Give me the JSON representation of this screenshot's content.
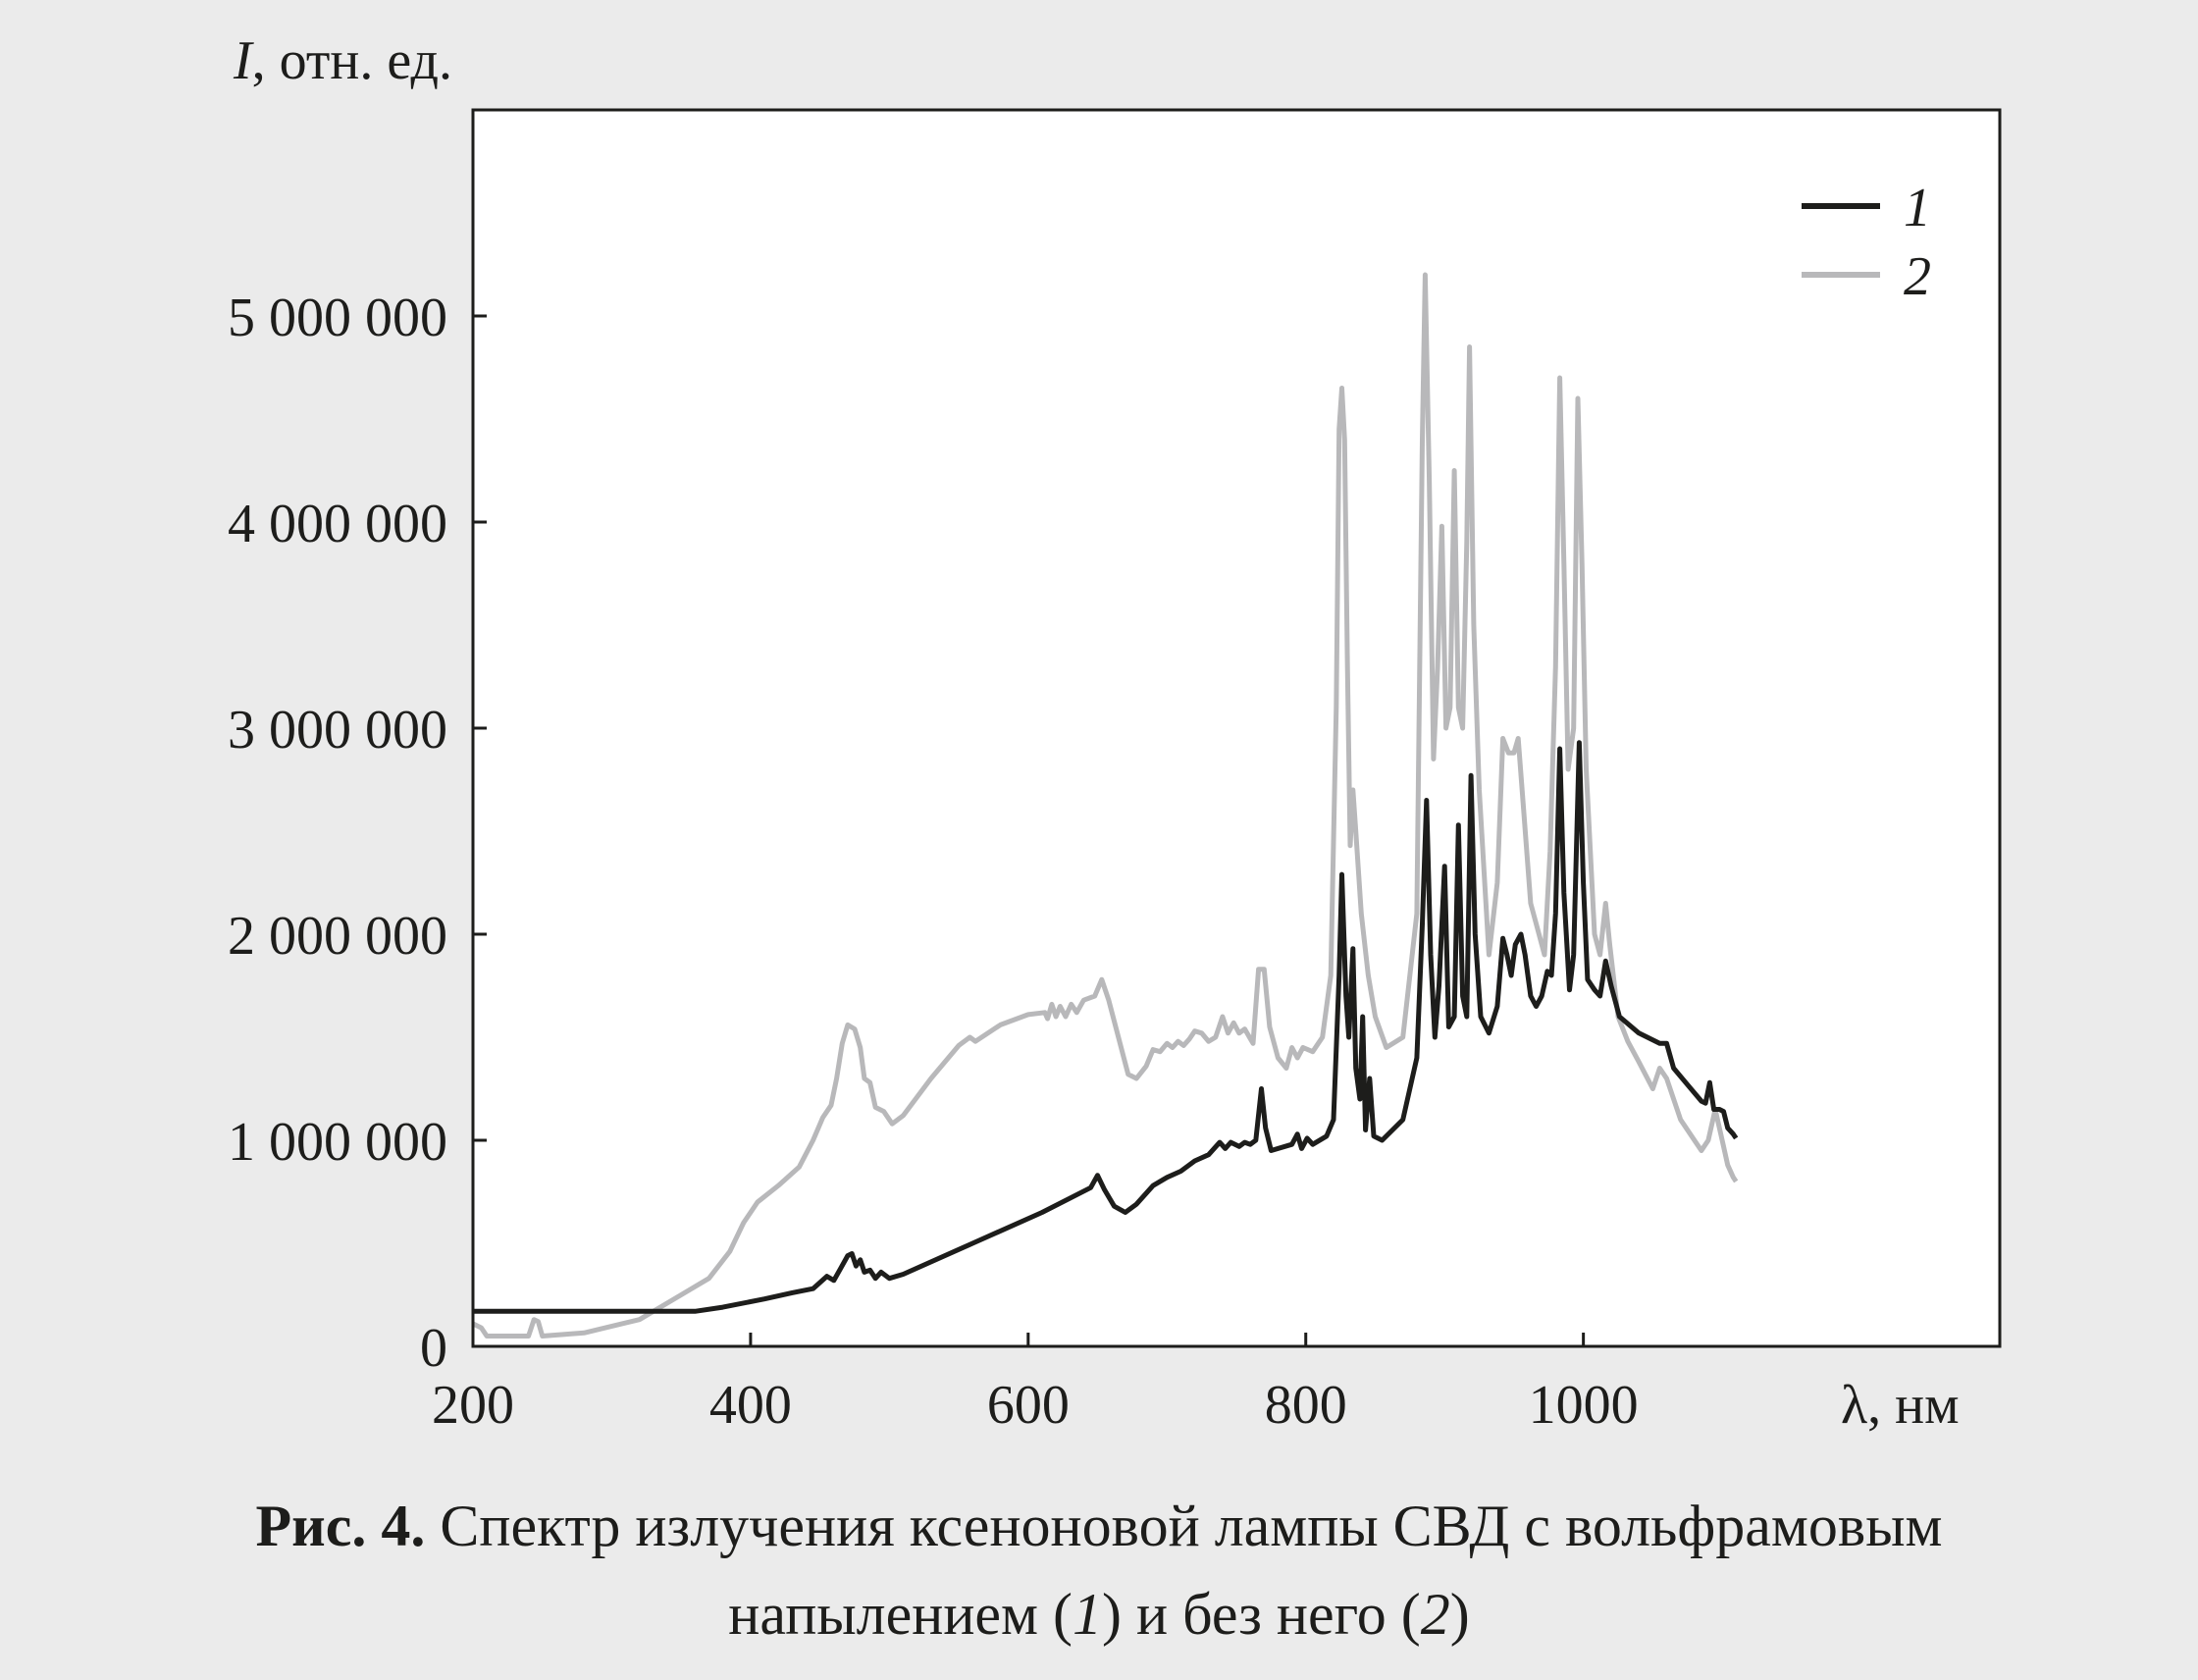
{
  "chart_data": {
    "type": "line",
    "ylabel_symbol": "I",
    "ylabel_unit": ", отн. ед.",
    "xlabel": "λ, нм",
    "xlim": [
      200,
      1300
    ],
    "ylim": [
      0,
      6000000
    ],
    "x_ticks": [
      200,
      400,
      600,
      800,
      1000
    ],
    "x_tick_labels": [
      "200",
      "400",
      "600",
      "800",
      "1000"
    ],
    "y_ticks": [
      0,
      1000000,
      2000000,
      3000000,
      4000000,
      5000000
    ],
    "y_tick_labels": [
      "0",
      "1 000 000",
      "2 000 000",
      "3 000 000",
      "4 000 000",
      "5 000 000"
    ],
    "legend_position": "top-right",
    "grid": false,
    "series": [
      {
        "name": "1",
        "color": "#1d1d1b",
        "points": [
          [
            200,
            170000
          ],
          [
            360,
            170000
          ],
          [
            380,
            190000
          ],
          [
            410,
            230000
          ],
          [
            430,
            260000
          ],
          [
            445,
            280000
          ],
          [
            455,
            340000
          ],
          [
            460,
            320000
          ],
          [
            465,
            380000
          ],
          [
            470,
            440000
          ],
          [
            473,
            450000
          ],
          [
            476,
            390000
          ],
          [
            479,
            420000
          ],
          [
            482,
            360000
          ],
          [
            486,
            370000
          ],
          [
            490,
            330000
          ],
          [
            494,
            360000
          ],
          [
            500,
            330000
          ],
          [
            510,
            350000
          ],
          [
            560,
            500000
          ],
          [
            610,
            650000
          ],
          [
            645,
            770000
          ],
          [
            650,
            830000
          ],
          [
            655,
            760000
          ],
          [
            662,
            680000
          ],
          [
            670,
            650000
          ],
          [
            678,
            690000
          ],
          [
            690,
            780000
          ],
          [
            700,
            820000
          ],
          [
            710,
            850000
          ],
          [
            720,
            900000
          ],
          [
            730,
            930000
          ],
          [
            738,
            990000
          ],
          [
            742,
            960000
          ],
          [
            746,
            990000
          ],
          [
            752,
            970000
          ],
          [
            756,
            990000
          ],
          [
            760,
            980000
          ],
          [
            764,
            1000000
          ],
          [
            768,
            1250000
          ],
          [
            771,
            1060000
          ],
          [
            775,
            950000
          ],
          [
            790,
            980000
          ],
          [
            794,
            1030000
          ],
          [
            797,
            960000
          ],
          [
            801,
            1010000
          ],
          [
            805,
            980000
          ],
          [
            815,
            1020000
          ],
          [
            820,
            1100000
          ],
          [
            824,
            1800000
          ],
          [
            826,
            2290000
          ],
          [
            829,
            1700000
          ],
          [
            831,
            1500000
          ],
          [
            834,
            1930000
          ],
          [
            836,
            1350000
          ],
          [
            839,
            1200000
          ],
          [
            841,
            1600000
          ],
          [
            843,
            1050000
          ],
          [
            846,
            1300000
          ],
          [
            849,
            1020000
          ],
          [
            855,
            1000000
          ],
          [
            870,
            1100000
          ],
          [
            880,
            1400000
          ],
          [
            884,
            2050000
          ],
          [
            887,
            2650000
          ],
          [
            890,
            1900000
          ],
          [
            893,
            1500000
          ],
          [
            896,
            1750000
          ],
          [
            900,
            2330000
          ],
          [
            903,
            1550000
          ],
          [
            907,
            1600000
          ],
          [
            910,
            2530000
          ],
          [
            913,
            1700000
          ],
          [
            916,
            1600000
          ],
          [
            919,
            2770000
          ],
          [
            922,
            2000000
          ],
          [
            926,
            1600000
          ],
          [
            932,
            1520000
          ],
          [
            938,
            1650000
          ],
          [
            942,
            1980000
          ],
          [
            945,
            1900000
          ],
          [
            948,
            1800000
          ],
          [
            951,
            1950000
          ],
          [
            955,
            2000000
          ],
          [
            958,
            1900000
          ],
          [
            962,
            1700000
          ],
          [
            966,
            1650000
          ],
          [
            970,
            1700000
          ],
          [
            974,
            1820000
          ],
          [
            977,
            1800000
          ],
          [
            980,
            2100000
          ],
          [
            983,
            2900000
          ],
          [
            986,
            2200000
          ],
          [
            990,
            1730000
          ],
          [
            993,
            1900000
          ],
          [
            997,
            2930000
          ],
          [
            1000,
            2250000
          ],
          [
            1003,
            1780000
          ],
          [
            1008,
            1730000
          ],
          [
            1012,
            1700000
          ],
          [
            1016,
            1870000
          ],
          [
            1020,
            1750000
          ],
          [
            1026,
            1600000
          ],
          [
            1040,
            1520000
          ],
          [
            1055,
            1470000
          ],
          [
            1060,
            1470000
          ],
          [
            1065,
            1350000
          ],
          [
            1075,
            1270000
          ],
          [
            1085,
            1190000
          ],
          [
            1088,
            1180000
          ],
          [
            1091,
            1280000
          ],
          [
            1094,
            1150000
          ],
          [
            1098,
            1150000
          ],
          [
            1101,
            1140000
          ],
          [
            1104,
            1060000
          ],
          [
            1108,
            1030000
          ],
          [
            1110,
            1010000
          ]
        ]
      },
      {
        "name": "2",
        "color": "#b8b8ba",
        "points": [
          [
            200,
            110000
          ],
          [
            206,
            90000
          ],
          [
            210,
            50000
          ],
          [
            240,
            50000
          ],
          [
            244,
            130000
          ],
          [
            247,
            120000
          ],
          [
            250,
            50000
          ],
          [
            280,
            65000
          ],
          [
            320,
            130000
          ],
          [
            350,
            250000
          ],
          [
            370,
            330000
          ],
          [
            385,
            460000
          ],
          [
            395,
            600000
          ],
          [
            405,
            700000
          ],
          [
            420,
            780000
          ],
          [
            435,
            870000
          ],
          [
            445,
            1000000
          ],
          [
            452,
            1110000
          ],
          [
            458,
            1170000
          ],
          [
            462,
            1300000
          ],
          [
            466,
            1470000
          ],
          [
            470,
            1560000
          ],
          [
            475,
            1540000
          ],
          [
            479,
            1450000
          ],
          [
            482,
            1300000
          ],
          [
            486,
            1280000
          ],
          [
            490,
            1160000
          ],
          [
            496,
            1140000
          ],
          [
            502,
            1080000
          ],
          [
            510,
            1120000
          ],
          [
            530,
            1300000
          ],
          [
            550,
            1460000
          ],
          [
            558,
            1500000
          ],
          [
            562,
            1480000
          ],
          [
            580,
            1560000
          ],
          [
            600,
            1610000
          ],
          [
            612,
            1620000
          ],
          [
            614,
            1590000
          ],
          [
            617,
            1660000
          ],
          [
            620,
            1600000
          ],
          [
            623,
            1650000
          ],
          [
            627,
            1600000
          ],
          [
            631,
            1660000
          ],
          [
            635,
            1620000
          ],
          [
            640,
            1680000
          ],
          [
            648,
            1700000
          ],
          [
            653,
            1780000
          ],
          [
            658,
            1680000
          ],
          [
            665,
            1500000
          ],
          [
            672,
            1320000
          ],
          [
            678,
            1300000
          ],
          [
            685,
            1360000
          ],
          [
            690,
            1440000
          ],
          [
            695,
            1430000
          ],
          [
            700,
            1470000
          ],
          [
            704,
            1450000
          ],
          [
            708,
            1480000
          ],
          [
            712,
            1460000
          ],
          [
            716,
            1490000
          ],
          [
            720,
            1530000
          ],
          [
            725,
            1520000
          ],
          [
            730,
            1480000
          ],
          [
            735,
            1500000
          ],
          [
            740,
            1600000
          ],
          [
            744,
            1520000
          ],
          [
            748,
            1570000
          ],
          [
            752,
            1520000
          ],
          [
            756,
            1540000
          ],
          [
            762,
            1470000
          ],
          [
            766,
            1830000
          ],
          [
            770,
            1830000
          ],
          [
            774,
            1550000
          ],
          [
            780,
            1400000
          ],
          [
            786,
            1350000
          ],
          [
            790,
            1450000
          ],
          [
            794,
            1400000
          ],
          [
            798,
            1450000
          ],
          [
            805,
            1430000
          ],
          [
            812,
            1500000
          ],
          [
            818,
            1800000
          ],
          [
            822,
            3100000
          ],
          [
            824,
            4450000
          ],
          [
            826,
            4650000
          ],
          [
            828,
            4400000
          ],
          [
            830,
            3300000
          ],
          [
            832,
            2430000
          ],
          [
            834,
            2700000
          ],
          [
            836,
            2500000
          ],
          [
            840,
            2100000
          ],
          [
            845,
            1800000
          ],
          [
            850,
            1600000
          ],
          [
            858,
            1450000
          ],
          [
            870,
            1500000
          ],
          [
            880,
            2100000
          ],
          [
            884,
            4400000
          ],
          [
            886,
            5200000
          ],
          [
            889,
            4200000
          ],
          [
            892,
            2850000
          ],
          [
            895,
            3300000
          ],
          [
            898,
            3980000
          ],
          [
            901,
            3000000
          ],
          [
            904,
            3100000
          ],
          [
            907,
            4250000
          ],
          [
            910,
            3100000
          ],
          [
            913,
            3000000
          ],
          [
            916,
            3900000
          ],
          [
            918,
            4850000
          ],
          [
            921,
            3500000
          ],
          [
            925,
            2700000
          ],
          [
            932,
            1900000
          ],
          [
            938,
            2250000
          ],
          [
            942,
            2950000
          ],
          [
            946,
            2880000
          ],
          [
            950,
            2880000
          ],
          [
            953,
            2950000
          ],
          [
            957,
            2600000
          ],
          [
            962,
            2150000
          ],
          [
            968,
            2000000
          ],
          [
            972,
            1900000
          ],
          [
            976,
            2400000
          ],
          [
            980,
            3300000
          ],
          [
            983,
            4700000
          ],
          [
            986,
            3800000
          ],
          [
            989,
            2800000
          ],
          [
            993,
            3000000
          ],
          [
            996,
            4600000
          ],
          [
            999,
            3800000
          ],
          [
            1002,
            2800000
          ],
          [
            1008,
            2000000
          ],
          [
            1012,
            1900000
          ],
          [
            1016,
            2150000
          ],
          [
            1019,
            1950000
          ],
          [
            1025,
            1600000
          ],
          [
            1032,
            1480000
          ],
          [
            1040,
            1380000
          ],
          [
            1050,
            1250000
          ],
          [
            1055,
            1350000
          ],
          [
            1060,
            1300000
          ],
          [
            1070,
            1100000
          ],
          [
            1080,
            1000000
          ],
          [
            1085,
            950000
          ],
          [
            1090,
            1000000
          ],
          [
            1095,
            1150000
          ],
          [
            1100,
            1000000
          ],
          [
            1104,
            880000
          ],
          [
            1108,
            820000
          ],
          [
            1110,
            800000
          ]
        ]
      }
    ]
  },
  "caption": {
    "label": "Рис. 4.",
    "text_1": " Спектр излучения ксеноновой лампы СВД с вольфрамовым",
    "text_2": "напылением (",
    "ref_1": "1",
    "text_3": ") и без него (",
    "ref_2": "2",
    "text_4": ")"
  }
}
